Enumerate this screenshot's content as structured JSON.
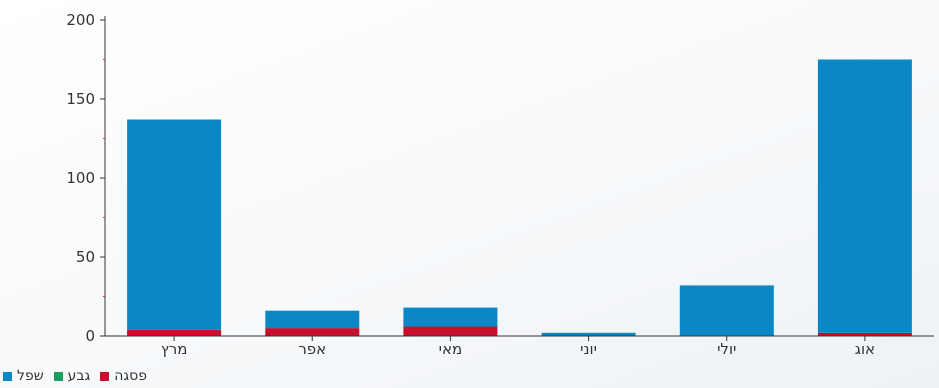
{
  "chart_data": {
    "type": "bar",
    "stacked": true,
    "categories": [
      "מרץ",
      "אפר",
      "מאי",
      "יוני",
      "יולי",
      "אוג"
    ],
    "series": [
      {
        "name": "פסגה",
        "color": "#c8102e",
        "values": [
          4,
          5,
          6,
          0,
          0,
          2
        ]
      },
      {
        "name": "גבע",
        "color": "#1a9e60",
        "values": [
          0,
          0,
          0,
          0,
          0,
          0
        ]
      },
      {
        "name": "שפל",
        "color": "#0a87c4",
        "values": [
          133,
          11,
          12,
          2,
          32,
          173
        ]
      }
    ],
    "ylim": [
      0,
      200
    ],
    "yticks": [
      0,
      50,
      100,
      150,
      200
    ],
    "grid": false,
    "legend_position": "bottom-left"
  }
}
